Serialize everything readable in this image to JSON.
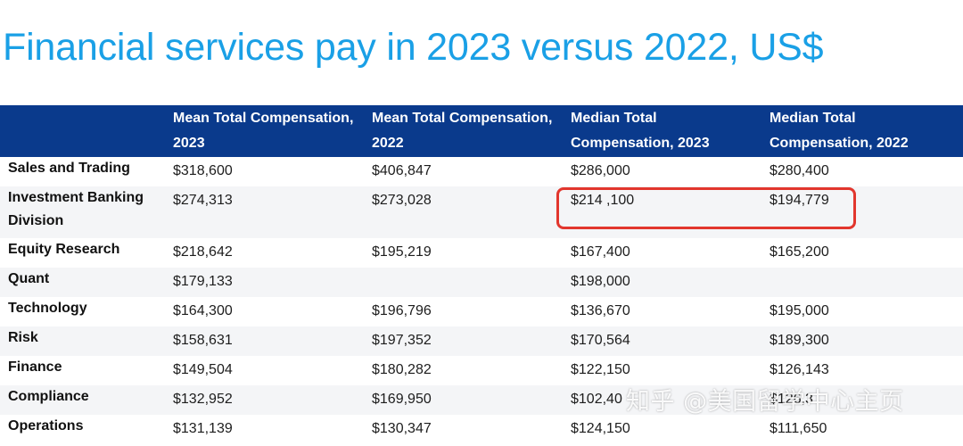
{
  "title": "Financial services pay in 2023 versus 2022, US$",
  "table": {
    "headers": [
      "",
      "Mean Total Compensation, 2023",
      "Mean Total Compensation, 2022",
      "Median Total Compensation, 2023",
      "Median Total Compensation, 2022"
    ],
    "rows": [
      [
        "Sales and Trading",
        "$318,600",
        "$406,847",
        "$286,000",
        "$280,400"
      ],
      [
        "Investment Banking Division",
        "$274,313",
        "$273,028",
        "$214 ,100",
        "$194,779"
      ],
      [
        "Equity Research",
        "$218,642",
        "$195,219",
        "$167,400",
        "$165,200"
      ],
      [
        "Quant",
        "$179,133",
        "",
        "$198,000",
        ""
      ],
      [
        "Technology",
        "$164,300",
        "$196,796",
        "$136,670",
        "$195,000"
      ],
      [
        "Risk",
        "$158,631",
        "$197,352",
        "$170,564",
        "$189,300"
      ],
      [
        "Finance",
        "$149,504",
        "$180,282",
        "$122,150",
        "$126,143"
      ],
      [
        "Compliance",
        "$132,952",
        "$169,950",
        "$102,40",
        "$126,3"
      ],
      [
        "Operations",
        "$131,139",
        "$130,347",
        "$124,150",
        "$111,650"
      ]
    ]
  },
  "watermark": "知乎 @美国留学中心主页",
  "colors": {
    "title": "#1aa0e6",
    "header_bg": "#0a3a8c",
    "highlight": "#e2362d"
  }
}
